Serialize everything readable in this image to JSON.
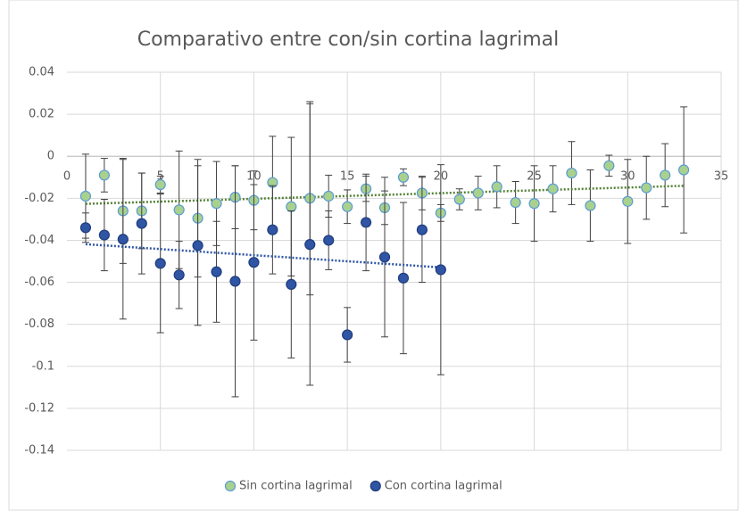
{
  "chart_data": {
    "type": "scatter",
    "title": "Comparativo entre con/sin cortina lagrimal",
    "xlim": [
      0,
      35
    ],
    "xticks": [
      0,
      5,
      10,
      15,
      20,
      25,
      30,
      35
    ],
    "ylim": [
      -0.14,
      0.04
    ],
    "yticks": [
      0.04,
      0.02,
      0,
      -0.02,
      -0.04,
      -0.06,
      -0.08,
      -0.1,
      -0.12,
      -0.14
    ],
    "grid": true,
    "legend": "bottom",
    "series": [
      {
        "name": "Sin cortina lagrimal",
        "color": "#a9d18e",
        "edge": "#5b9bd5",
        "trend_color": "#548235",
        "trendline": "linear",
        "x": [
          1,
          2,
          3,
          4,
          5,
          6,
          7,
          8,
          9,
          10,
          11,
          12,
          13,
          14,
          15,
          16,
          17,
          18,
          19,
          20,
          21,
          22,
          23,
          24,
          25,
          26,
          27,
          28,
          29,
          30,
          31,
          32,
          33
        ],
        "values": [
          -0.019,
          -0.009,
          -0.026,
          -0.026,
          -0.0135,
          -0.0255,
          -0.0295,
          -0.0225,
          -0.0195,
          -0.021,
          -0.0125,
          -0.024,
          -0.02,
          -0.019,
          -0.024,
          -0.0155,
          -0.0245,
          -0.01,
          -0.0175,
          -0.027,
          -0.0205,
          -0.0175,
          -0.0145,
          -0.022,
          -0.0225,
          -0.0155,
          -0.008,
          -0.0235,
          -0.0045,
          -0.0215,
          -0.015,
          -0.009,
          -0.0065
        ],
        "errors": [
          0.02,
          0.008,
          0.025,
          0.018,
          0.004,
          0.028,
          0.028,
          0.02,
          0.015,
          0.014,
          0.022,
          0.033,
          0.046,
          0.01,
          0.008,
          0.006,
          0.008,
          0.004,
          0.008,
          0.004,
          0.005,
          0.008,
          0.01,
          0.01,
          0.018,
          0.011,
          0.015,
          0.017,
          0.005,
          0.02,
          0.015,
          0.015,
          0.03
        ]
      },
      {
        "name": "Con cortina lagrimal",
        "color": "#2f55a4",
        "edge": "#1f3c7a",
        "trend_color": "#2f55a4",
        "trendline": "linear",
        "x": [
          1,
          2,
          3,
          4,
          5,
          6,
          7,
          8,
          9,
          10,
          11,
          12,
          13,
          14,
          15,
          16,
          17,
          18,
          19,
          20
        ],
        "values": [
          -0.034,
          -0.0375,
          -0.0395,
          -0.032,
          -0.051,
          -0.0565,
          -0.0425,
          -0.055,
          -0.0595,
          -0.0505,
          -0.035,
          -0.061,
          -0.042,
          -0.04,
          -0.085,
          -0.0315,
          -0.048,
          -0.058,
          -0.035,
          -0.054
        ],
        "errors": [
          0.007,
          0.017,
          0.038,
          0.024,
          0.033,
          0.016,
          0.038,
          0.024,
          0.055,
          0.037,
          0.021,
          0.035,
          0.067,
          0.014,
          0.013,
          0.023,
          0.038,
          0.036,
          0.025,
          0.05
        ]
      }
    ]
  }
}
